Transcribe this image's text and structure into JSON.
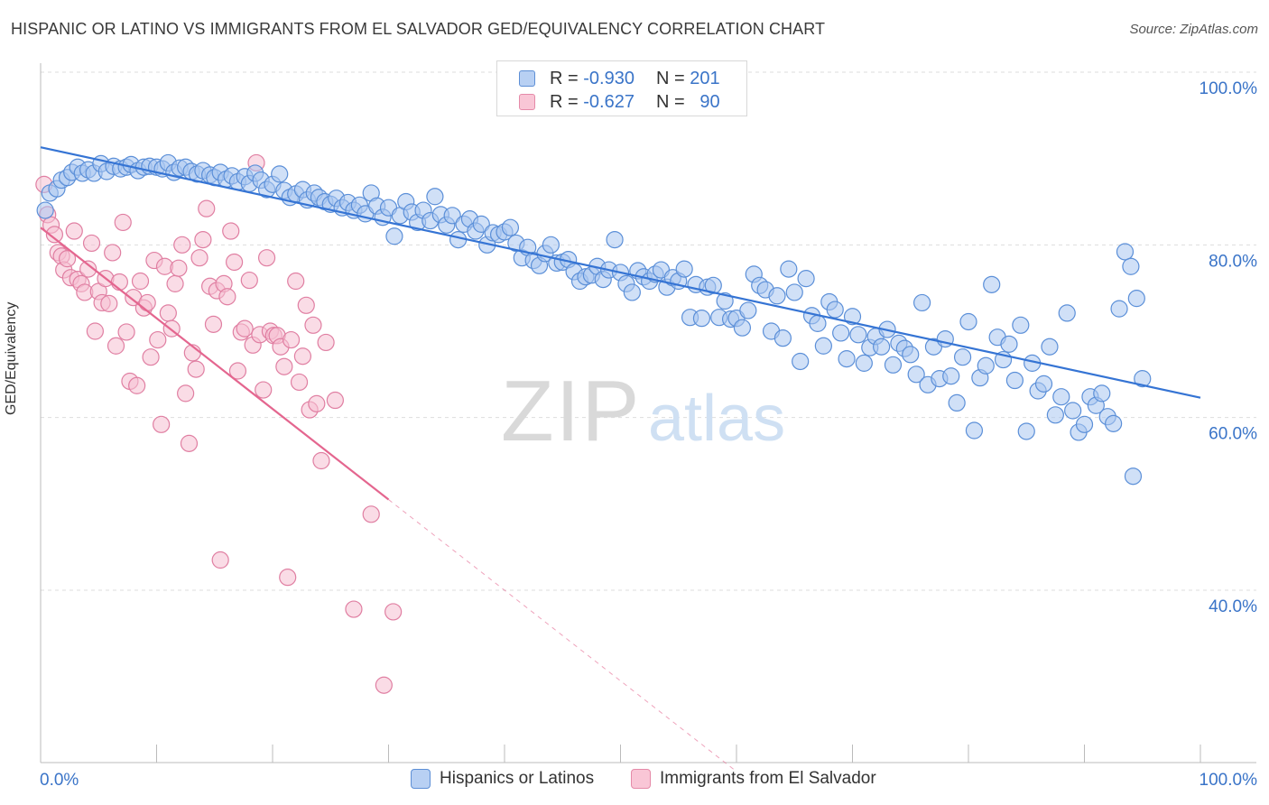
{
  "title": "HISPANIC OR LATINO VS IMMIGRANTS FROM EL SALVADOR GED/EQUIVALENCY CORRELATION CHART",
  "source": "Source: ZipAtlas.com",
  "watermark": {
    "zip": "ZIP",
    "atlas": "atlas"
  },
  "colors": {
    "blue_fill": "#a9c7f0",
    "blue_stroke": "#5b8fd8",
    "blue_line": "#3574d4",
    "pink_fill": "#f6bfd1",
    "pink_stroke": "#e07fa2",
    "pink_line": "#e4668f",
    "tick_label": "#3a74c8",
    "grid": "#dddddd"
  },
  "legend_top": {
    "row1": {
      "r_label": "R =",
      "r_value": "-0.930",
      "n_label": "N =",
      "n_value": "201"
    },
    "row2": {
      "r_label": "R =",
      "r_value": "-0.627",
      "n_label": "N =",
      "n_value": "90"
    }
  },
  "legend_bottom": {
    "series1": "Hispanics or Latinos",
    "series2": "Immigrants from El Salvador"
  },
  "chart_data": {
    "type": "scatter",
    "title": "HISPANIC OR LATINO VS IMMIGRANTS FROM EL SALVADOR GED/EQUIVALENCY CORRELATION CHART",
    "xlabel": "",
    "ylabel": "GED/Equivalency",
    "xlim": [
      0,
      100
    ],
    "ylim": [
      18,
      102
    ],
    "x_ticks": [
      "0.0%",
      "100.0%"
    ],
    "y_ticks": [
      {
        "value": 100,
        "label": "100.0%"
      },
      {
        "value": 80,
        "label": "80.0%"
      },
      {
        "value": 60,
        "label": "60.0%"
      },
      {
        "value": 40,
        "label": "40.0%"
      }
    ],
    "grid": "horizontal dashed",
    "series": [
      {
        "name": "Hispanics or Latinos",
        "r": -0.93,
        "n": 201,
        "trend": {
          "x": [
            0,
            100
          ],
          "y": [
            91.3,
            62.3
          ]
        },
        "points": [
          [
            0.4,
            84
          ],
          [
            0.8,
            86
          ],
          [
            1.4,
            86.5
          ],
          [
            1.8,
            87.5
          ],
          [
            2.3,
            87.8
          ],
          [
            2.7,
            88.4
          ],
          [
            3.2,
            89
          ],
          [
            3.6,
            88.3
          ],
          [
            4.1,
            88.7
          ],
          [
            4.6,
            88.3
          ],
          [
            5.2,
            89.4
          ],
          [
            5.7,
            88.5
          ],
          [
            6.3,
            89.1
          ],
          [
            6.9,
            88.8
          ],
          [
            7.4,
            89
          ],
          [
            7.8,
            89.3
          ],
          [
            8.4,
            88.6
          ],
          [
            8.9,
            89
          ],
          [
            9.4,
            89.1
          ],
          [
            10,
            89
          ],
          [
            10.5,
            88.8
          ],
          [
            11,
            89.5
          ],
          [
            11.5,
            88.4
          ],
          [
            12,
            88.9
          ],
          [
            12.5,
            89
          ],
          [
            13,
            88.5
          ],
          [
            13.5,
            88.2
          ],
          [
            14,
            88.6
          ],
          [
            14.6,
            88.1
          ],
          [
            15,
            87.8
          ],
          [
            15.5,
            88.4
          ],
          [
            16,
            87.6
          ],
          [
            16.5,
            88
          ],
          [
            17,
            87.3
          ],
          [
            17.6,
            87.9
          ],
          [
            18,
            87.1
          ],
          [
            18.5,
            88.3
          ],
          [
            19,
            87.5
          ],
          [
            19.5,
            86.4
          ],
          [
            20,
            87
          ],
          [
            20.6,
            88.2
          ],
          [
            21,
            86.3
          ],
          [
            21.5,
            85.5
          ],
          [
            22,
            85.9
          ],
          [
            22.6,
            86.4
          ],
          [
            23,
            85.2
          ],
          [
            23.6,
            86
          ],
          [
            24,
            85.5
          ],
          [
            24.5,
            85
          ],
          [
            25,
            84.7
          ],
          [
            25.5,
            85.4
          ],
          [
            26,
            84.3
          ],
          [
            26.5,
            84.9
          ],
          [
            27,
            84
          ],
          [
            27.5,
            84.6
          ],
          [
            28,
            83.6
          ],
          [
            28.5,
            86
          ],
          [
            29,
            84.5
          ],
          [
            29.5,
            83.2
          ],
          [
            30,
            84.3
          ],
          [
            30.5,
            81
          ],
          [
            31,
            83.4
          ],
          [
            31.5,
            85
          ],
          [
            32,
            83.8
          ],
          [
            32.5,
            82.6
          ],
          [
            33,
            84
          ],
          [
            33.6,
            82.8
          ],
          [
            34,
            85.6
          ],
          [
            34.5,
            83.5
          ],
          [
            35,
            82.3
          ],
          [
            35.5,
            83.4
          ],
          [
            36,
            80.6
          ],
          [
            36.5,
            82.4
          ],
          [
            37,
            83
          ],
          [
            37.5,
            81.6
          ],
          [
            38,
            82.4
          ],
          [
            38.5,
            80
          ],
          [
            39,
            81.4
          ],
          [
            39.5,
            81.2
          ],
          [
            40,
            81.5
          ],
          [
            40.5,
            82
          ],
          [
            41,
            80.2
          ],
          [
            41.5,
            78.5
          ],
          [
            42,
            79.7
          ],
          [
            42.5,
            78.2
          ],
          [
            43,
            77.6
          ],
          [
            43.5,
            79
          ],
          [
            44,
            80
          ],
          [
            44.5,
            77.9
          ],
          [
            45,
            78
          ],
          [
            45.5,
            78.3
          ],
          [
            46,
            76.9
          ],
          [
            46.5,
            75.8
          ],
          [
            47,
            76.3
          ],
          [
            47.5,
            76.5
          ],
          [
            48,
            77.5
          ],
          [
            48.5,
            76
          ],
          [
            49,
            77.1
          ],
          [
            49.5,
            80.6
          ],
          [
            50,
            76.8
          ],
          [
            50.5,
            75.5
          ],
          [
            51,
            74.5
          ],
          [
            51.5,
            77
          ],
          [
            52,
            76.3
          ],
          [
            52.5,
            75.8
          ],
          [
            53,
            76.6
          ],
          [
            53.5,
            77.1
          ],
          [
            54,
            75.1
          ],
          [
            54.5,
            76.2
          ],
          [
            55,
            75.8
          ],
          [
            55.5,
            77.2
          ],
          [
            56,
            71.6
          ],
          [
            56.5,
            75.4
          ],
          [
            57,
            71.5
          ],
          [
            57.5,
            75.1
          ],
          [
            58,
            75.3
          ],
          [
            58.5,
            71.6
          ],
          [
            59,
            73.5
          ],
          [
            59.5,
            71.4
          ],
          [
            60,
            71.5
          ],
          [
            60.5,
            70.4
          ],
          [
            61,
            72.4
          ],
          [
            61.5,
            76.6
          ],
          [
            62,
            75.3
          ],
          [
            62.5,
            74.8
          ],
          [
            63,
            70
          ],
          [
            63.5,
            74.1
          ],
          [
            64,
            69.2
          ],
          [
            64.5,
            77.2
          ],
          [
            65,
            74.5
          ],
          [
            65.5,
            66.5
          ],
          [
            66,
            76.1
          ],
          [
            66.5,
            71.8
          ],
          [
            67,
            70.9
          ],
          [
            67.5,
            68.3
          ],
          [
            68,
            73.4
          ],
          [
            68.5,
            72.5
          ],
          [
            69,
            69.8
          ],
          [
            69.5,
            66.8
          ],
          [
            70,
            71.7
          ],
          [
            70.5,
            69.6
          ],
          [
            71,
            66.3
          ],
          [
            71.5,
            68.1
          ],
          [
            72,
            69.4
          ],
          [
            72.5,
            68.2
          ],
          [
            73,
            70.2
          ],
          [
            73.5,
            66.1
          ],
          [
            74,
            68.6
          ],
          [
            74.5,
            68
          ],
          [
            75,
            67.3
          ],
          [
            75.5,
            65
          ],
          [
            76,
            73.3
          ],
          [
            76.5,
            63.8
          ],
          [
            77,
            68.2
          ],
          [
            77.5,
            64.5
          ],
          [
            78,
            69.1
          ],
          [
            78.5,
            64.8
          ],
          [
            79,
            61.7
          ],
          [
            79.5,
            67
          ],
          [
            80,
            71.1
          ],
          [
            80.5,
            58.5
          ],
          [
            81,
            64.6
          ],
          [
            81.5,
            66
          ],
          [
            82,
            75.4
          ],
          [
            82.5,
            69.3
          ],
          [
            83,
            66.7
          ],
          [
            83.5,
            68.5
          ],
          [
            84,
            64.3
          ],
          [
            84.5,
            70.7
          ],
          [
            85,
            58.4
          ],
          [
            85.5,
            66.3
          ],
          [
            86,
            63.1
          ],
          [
            86.5,
            63.9
          ],
          [
            87,
            68.2
          ],
          [
            87.5,
            60.3
          ],
          [
            88,
            62.4
          ],
          [
            88.5,
            72.1
          ],
          [
            89,
            60.8
          ],
          [
            89.5,
            58.3
          ],
          [
            90,
            59.2
          ],
          [
            90.5,
            62.4
          ],
          [
            91,
            61.4
          ],
          [
            91.5,
            62.8
          ],
          [
            92,
            60.1
          ],
          [
            92.5,
            59.3
          ],
          [
            93,
            72.6
          ],
          [
            93.5,
            79.2
          ],
          [
            94,
            77.5
          ],
          [
            94.5,
            73.8
          ],
          [
            95,
            64.5
          ],
          [
            94.2,
            53.2
          ]
        ]
      },
      {
        "name": "Immigrants from El Salvador",
        "r": -0.627,
        "n": 90,
        "trend": {
          "x": [
            0,
            30
          ],
          "y": [
            82,
            50.5
          ]
        },
        "trend_extension": {
          "x": [
            30,
            60
          ],
          "y": [
            50.5,
            19
          ]
        },
        "points": [
          [
            0.3,
            87
          ],
          [
            0.6,
            83.5
          ],
          [
            0.9,
            82.3
          ],
          [
            1.2,
            81.2
          ],
          [
            1.5,
            79.1
          ],
          [
            1.8,
            78.7
          ],
          [
            2,
            77.1
          ],
          [
            2.3,
            78.4
          ],
          [
            2.6,
            76.2
          ],
          [
            2.9,
            81.6
          ],
          [
            3.2,
            76
          ],
          [
            3.5,
            75.5
          ],
          [
            3.8,
            74.5
          ],
          [
            4.1,
            77.2
          ],
          [
            4.4,
            80.2
          ],
          [
            4.7,
            70
          ],
          [
            5,
            74.6
          ],
          [
            5.3,
            73.3
          ],
          [
            5.6,
            76.1
          ],
          [
            5.9,
            73.2
          ],
          [
            6.2,
            79.1
          ],
          [
            6.5,
            68.3
          ],
          [
            6.8,
            75.7
          ],
          [
            7.1,
            82.6
          ],
          [
            7.4,
            69.9
          ],
          [
            7.7,
            64.2
          ],
          [
            8,
            73.9
          ],
          [
            8.3,
            63.7
          ],
          [
            8.6,
            75.8
          ],
          [
            8.9,
            72.7
          ],
          [
            9.2,
            73.3
          ],
          [
            9.5,
            67
          ],
          [
            9.8,
            78.2
          ],
          [
            10.1,
            69
          ],
          [
            10.4,
            59.2
          ],
          [
            10.7,
            77.5
          ],
          [
            11,
            72.1
          ],
          [
            11.3,
            70.3
          ],
          [
            11.6,
            75.5
          ],
          [
            11.9,
            77.3
          ],
          [
            12.2,
            80
          ],
          [
            12.5,
            62.8
          ],
          [
            12.8,
            57
          ],
          [
            13.1,
            67.5
          ],
          [
            13.4,
            65.6
          ],
          [
            13.7,
            78.5
          ],
          [
            14,
            80.6
          ],
          [
            14.3,
            84.2
          ],
          [
            14.6,
            75.2
          ],
          [
            14.9,
            70.8
          ],
          [
            15.2,
            74.7
          ],
          [
            15.5,
            43.5
          ],
          [
            15.8,
            75.5
          ],
          [
            16.1,
            74
          ],
          [
            16.4,
            81.6
          ],
          [
            16.7,
            78
          ],
          [
            17,
            65.4
          ],
          [
            17.3,
            69.9
          ],
          [
            17.6,
            70.3
          ],
          [
            18,
            75.9
          ],
          [
            18.3,
            68.4
          ],
          [
            18.6,
            89.5
          ],
          [
            18.9,
            69.6
          ],
          [
            19.2,
            63.2
          ],
          [
            19.5,
            78.5
          ],
          [
            19.8,
            70
          ],
          [
            20.1,
            69.5
          ],
          [
            20.4,
            69.5
          ],
          [
            20.7,
            68.2
          ],
          [
            21,
            65.9
          ],
          [
            21.3,
            41.5
          ],
          [
            21.6,
            69
          ],
          [
            22,
            75.8
          ],
          [
            22.3,
            64.1
          ],
          [
            22.6,
            67.1
          ],
          [
            22.9,
            73
          ],
          [
            23.2,
            60.9
          ],
          [
            23.5,
            70.7
          ],
          [
            23.8,
            61.6
          ],
          [
            24.2,
            55
          ],
          [
            24.6,
            68.7
          ],
          [
            27,
            37.8
          ],
          [
            28.5,
            48.8
          ],
          [
            30.4,
            37.5
          ],
          [
            25.4,
            62
          ],
          [
            29.6,
            29
          ]
        ]
      }
    ]
  }
}
